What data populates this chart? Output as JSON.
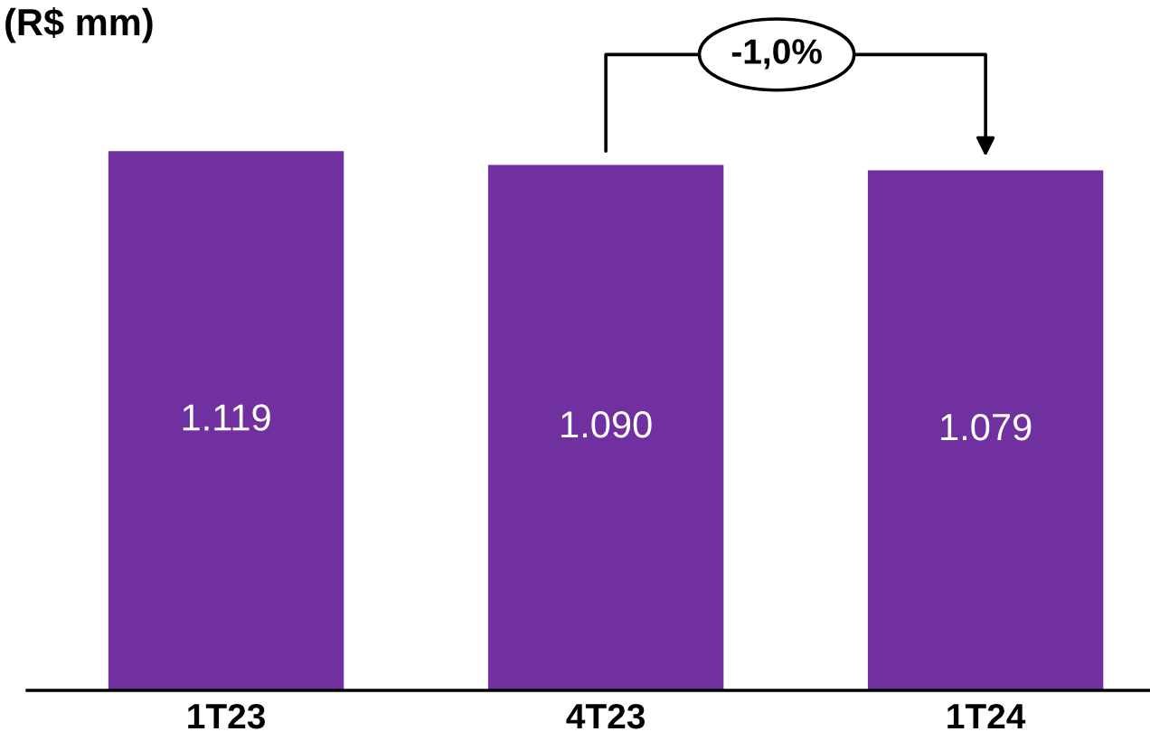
{
  "chart_data": {
    "type": "bar",
    "title": "(R$ mm)",
    "categories": [
      "1T23",
      "4T23",
      "1T24"
    ],
    "values": [
      1119,
      1090,
      1079
    ],
    "value_labels": [
      "1.119",
      "1.090",
      "1.079"
    ],
    "color": "#7030a0",
    "annotations": [
      "-1,0%"
    ]
  }
}
